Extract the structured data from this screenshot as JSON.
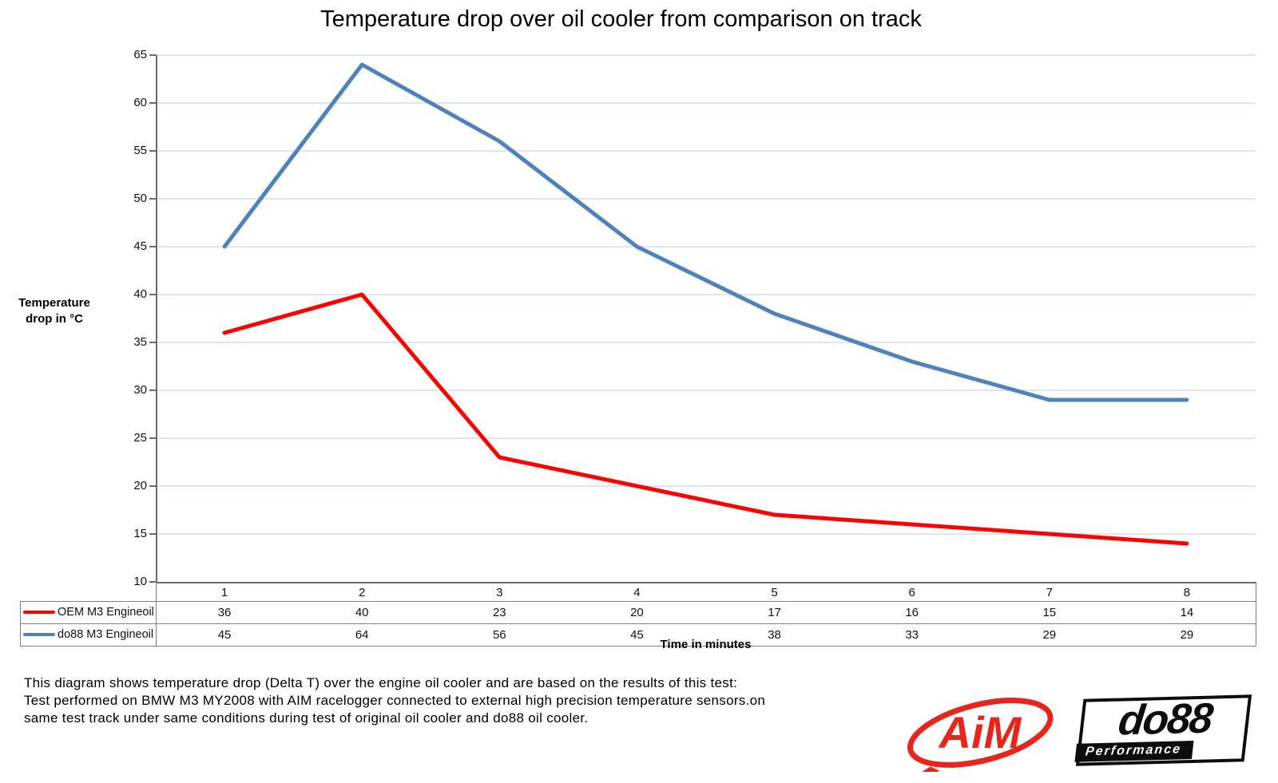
{
  "title": "Temperature drop over oil cooler from comparison on track",
  "y_axis": {
    "label_lines": [
      "Temperature",
      "drop in °C"
    ],
    "ticks": [
      "65",
      "60",
      "55",
      "50",
      "45",
      "40",
      "35",
      "30",
      "25",
      "20",
      "15",
      "10"
    ]
  },
  "x_axis": {
    "title": "Time in minutes",
    "categories": [
      "1",
      "2",
      "3",
      "4",
      "5",
      "6",
      "7",
      "8"
    ]
  },
  "legend": [
    {
      "label": "OEM M3 Engineoil",
      "color": "#ff0000"
    },
    {
      "label": "do88 M3 Engineoil",
      "color": "#4f81bd"
    }
  ],
  "chart_data": {
    "type": "line",
    "title": "Temperature drop over oil cooler from comparison on track",
    "xlabel": "Time in minutes",
    "ylabel": "Temperature drop in °C",
    "ylim": [
      10,
      65
    ],
    "ytick_step": 5,
    "grid": true,
    "legend_position": "table-bottom",
    "categories": [
      1,
      2,
      3,
      4,
      5,
      6,
      7,
      8
    ],
    "series": [
      {
        "name": "OEM M3 Engineoil",
        "color": "#ff0000",
        "values": [
          36,
          40,
          23,
          20,
          17,
          16,
          15,
          14
        ]
      },
      {
        "name": "do88 M3 Engineoil",
        "color": "#4f81bd",
        "values": [
          45,
          64,
          56,
          45,
          38,
          33,
          29,
          29
        ]
      }
    ]
  },
  "footnote": {
    "lines": [
      "This diagram shows temperature drop (Delta T) over the engine oil cooler and are based on the results of this test:",
      "Test performed on BMW M3 MY2008 with AIM racelogger connected to external high precision temperature sensors.on",
      "same test track under same conditions during test of original oil cooler and do88 oil cooler."
    ]
  },
  "logos": {
    "aim": {
      "text": "AiM",
      "color": "#e8251d"
    },
    "do88": {
      "text": "do88",
      "subtext": "Performance",
      "color": "#0d0d0d"
    }
  },
  "colors": {
    "gridline": "#c9d8ee",
    "axis": "#6b6b6b",
    "table_border": "#7f7f7f",
    "background": "#ffffff"
  }
}
